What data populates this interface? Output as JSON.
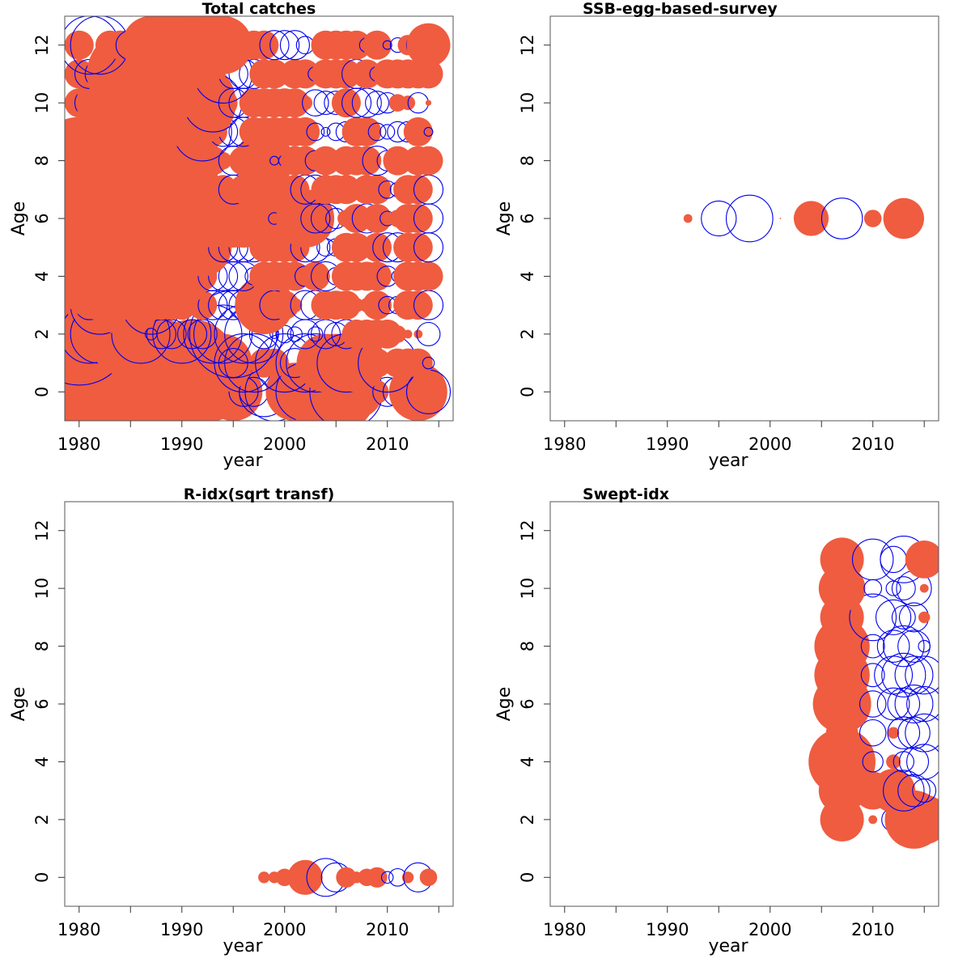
{
  "colors": {
    "positive": "#ef5c40",
    "negative": "#0000ee"
  },
  "chart_data": [
    {
      "type": "scatter",
      "title": "Total catches",
      "xlabel": "year",
      "ylabel": "Age",
      "xlim": [
        1978.6,
        2016.4
      ],
      "ylim": [
        -1,
        13
      ],
      "xticks": [
        1980,
        1990,
        2000,
        2010
      ],
      "yticks": [
        0,
        2,
        4,
        6,
        8,
        10,
        12
      ],
      "x": [
        1980,
        1981,
        1982,
        1983,
        1984,
        1985,
        1986,
        1987,
        1988,
        1989,
        1990,
        1991,
        1992,
        1993,
        1994,
        1995,
        1996,
        1997,
        1998,
        1999,
        2000,
        2001,
        2002,
        2003,
        2004,
        2005,
        2006,
        2007,
        2008,
        2009,
        2010,
        2011,
        2012,
        2013,
        2014
      ],
      "ages": [
        0,
        1,
        2,
        3,
        4,
        5,
        6,
        7,
        8,
        9,
        10,
        11,
        12
      ],
      "residuals": [
        [
          3,
          -2,
          2,
          -3,
          3,
          -3.5,
          2,
          3,
          2,
          -2,
          3,
          2,
          1,
          2,
          0.6,
          2,
          -1,
          -1,
          -1.7,
          -2,
          -1,
          2,
          -2,
          2,
          2.8,
          2.8,
          -2.5,
          1.8,
          0.8,
          0.8,
          -1,
          -1,
          1,
          2,
          -1.5
        ],
        [
          4,
          -1,
          3,
          -2,
          4,
          -2,
          3,
          -1,
          3,
          -1,
          2,
          3,
          2,
          -1,
          2,
          -1,
          -2,
          -2,
          1,
          1,
          -2,
          -1,
          -2,
          -2,
          2,
          2,
          -2,
          2,
          1,
          1,
          -2,
          1,
          1,
          1,
          -0.4
        ],
        [
          -3.5,
          -2,
          -2,
          2,
          2,
          3,
          -2,
          -0.4,
          -1,
          -1,
          -2,
          -1,
          -1,
          -2,
          -2,
          -3,
          -2,
          -2,
          -1,
          -0.3,
          -0.6,
          -0.5,
          -1,
          -0.5,
          -1,
          -0.8,
          -1,
          1,
          1,
          1,
          1,
          0.6,
          0.3,
          0.3,
          -0.8
        ],
        [
          1,
          -1,
          -2,
          -1,
          2,
          2,
          1,
          -2,
          1,
          1,
          1,
          0.7,
          1,
          -1,
          -1,
          -1,
          -1,
          -1,
          2,
          -1,
          1,
          0.5,
          -1,
          -1,
          1,
          1,
          1,
          0.5,
          0.5,
          1,
          -0.6,
          -0.6,
          1,
          1,
          -1
        ],
        [
          -2,
          1,
          3,
          3,
          2,
          3,
          3,
          3,
          2,
          2,
          2,
          1,
          1,
          -1,
          -1,
          -1,
          -1,
          -0.6,
          1,
          1,
          1,
          1,
          -0.7,
          1,
          -1,
          -0.6,
          1,
          1,
          1,
          1,
          -0.7,
          -0.4,
          1,
          1,
          1
        ],
        [
          4,
          4,
          3,
          3,
          3,
          3,
          3,
          3,
          3,
          2,
          2,
          2,
          2,
          1,
          -1,
          -1,
          -1,
          -1,
          1,
          1,
          1,
          1,
          -1,
          -1,
          -0.6,
          -0.6,
          1,
          1,
          0.5,
          1,
          -1,
          -1,
          1,
          1,
          -1
        ],
        [
          4,
          4,
          3,
          3,
          3,
          3,
          3,
          3,
          3,
          3,
          2,
          2,
          2,
          2,
          1,
          2,
          2,
          2,
          2,
          -0.4,
          0.5,
          1,
          2,
          -1,
          -1,
          -0.7,
          0.6,
          1,
          -1,
          1,
          -0.5,
          0.6,
          1,
          1,
          -1
        ],
        [
          4,
          4,
          3,
          3,
          3,
          3,
          3,
          2,
          2,
          2,
          2,
          2,
          1,
          1,
          1,
          -1,
          1,
          1,
          1,
          0.8,
          1,
          1,
          -1,
          -1,
          1,
          1,
          1,
          0.6,
          1,
          1,
          -0.6,
          -0.5,
          1,
          1,
          -1
        ],
        [
          3,
          -1,
          2,
          3,
          3,
          3,
          3,
          2,
          2,
          2,
          2,
          2,
          1,
          1,
          0.6,
          -1,
          1,
          1,
          2,
          -0.3,
          -0.4,
          1,
          1,
          -0.7,
          1,
          0.5,
          1,
          1,
          1,
          -1,
          -0.7,
          1,
          0.5,
          1,
          1
        ],
        [
          1,
          1,
          -1,
          2,
          3,
          3,
          3,
          3,
          2,
          2,
          2,
          2,
          -2,
          1,
          -1,
          -1,
          -1,
          1,
          1,
          1,
          1,
          1,
          1,
          -0.6,
          -0.3,
          -0.6,
          -0.7,
          1,
          1,
          -0.6,
          -0.5,
          -0.7,
          -0.7,
          1,
          -0.3
        ],
        [
          1,
          -1,
          0.5,
          -1,
          3,
          2,
          3,
          0.6,
          -0.4,
          2,
          3,
          3,
          1,
          -2,
          1,
          -1,
          -1,
          1,
          1,
          1,
          1,
          1,
          0.5,
          -0.9,
          -0.8,
          -0.8,
          1,
          -1,
          -1,
          -0.8,
          -0.7,
          0.6,
          0.5,
          -0.7,
          0.2
        ],
        [
          1,
          -1,
          -1,
          -1,
          -1,
          3,
          3,
          3,
          3,
          3,
          3,
          2,
          1,
          0.3,
          -2,
          -1,
          -1,
          -1,
          1,
          1,
          0.6,
          1,
          1,
          -0.5,
          1,
          1,
          1,
          -1,
          1,
          -0.5,
          1,
          1,
          1,
          1,
          1
        ],
        [
          1,
          -2,
          -2,
          1,
          1,
          -1,
          1,
          2,
          2,
          2,
          3,
          3,
          2,
          2,
          2,
          1,
          1,
          1,
          1,
          -1,
          -1,
          -1,
          -0.6,
          0.2,
          1,
          1,
          1,
          1,
          -0.5,
          1,
          -0.3,
          -0.5,
          0.7,
          -0.8,
          1.5
        ]
      ]
    },
    {
      "type": "scatter",
      "title": "SSB-egg-based-survey",
      "xlabel": "year",
      "ylabel": "Age",
      "xlim": [
        1978.6,
        2016.4
      ],
      "ylim": [
        -1,
        13
      ],
      "xticks": [
        1980,
        1990,
        2000,
        2010
      ],
      "yticks": [
        0,
        2,
        4,
        6,
        8,
        10,
        12
      ],
      "x": [
        1992,
        1995,
        1998,
        2001,
        2004,
        2007,
        2010,
        2013
      ],
      "ages": [
        6
      ],
      "residuals": [
        [
          0.3,
          -1.2,
          -1.6,
          0.05,
          1.2,
          -1.4,
          0.6,
          1.4
        ]
      ]
    },
    {
      "type": "scatter",
      "title": "R-idx(sqrt transf)",
      "xlabel": "year",
      "ylabel": "Age",
      "xlim": [
        1978.6,
        2016.4
      ],
      "ylim": [
        -1,
        13
      ],
      "xticks": [
        1980,
        1990,
        2000,
        2010
      ],
      "yticks": [
        0,
        2,
        4,
        6,
        8,
        10,
        12
      ],
      "x": [
        1998,
        1999,
        2000,
        2001,
        2002,
        2003,
        2004,
        2005,
        2006,
        2007,
        2008,
        2009,
        2010,
        2011,
        2012,
        2013,
        2014
      ],
      "ages": [
        0
      ],
      "residuals": [
        [
          0.4,
          0.4,
          0.6,
          0.4,
          1.2,
          0.1,
          -1.3,
          -1,
          0.7,
          0.4,
          0.6,
          0.7,
          -0.4,
          -0.6,
          0.4,
          -1,
          0.6
        ]
      ]
    },
    {
      "type": "scatter",
      "title": "Swept-idx",
      "xlabel": "year",
      "ylabel": "Age",
      "xlim": [
        1978.6,
        2016.4
      ],
      "ylim": [
        -1,
        13
      ],
      "xticks": [
        1980,
        1990,
        2000,
        2010
      ],
      "yticks": [
        0,
        2,
        4,
        6,
        8,
        10,
        12
      ],
      "x": [
        2007,
        2010,
        2012,
        2013,
        2014,
        2015
      ],
      "ages": [
        2,
        3,
        4,
        5,
        6,
        7,
        8,
        9,
        10,
        11
      ],
      "residuals": [
        [
          1.5,
          0.3,
          -0.8,
          1,
          2,
          1.7
        ],
        [
          1.6,
          1.3,
          1.5,
          -1.4,
          -1.1,
          -0.8
        ],
        [
          2.3,
          -0.7,
          0.5,
          -0.7,
          -1,
          -1.2
        ],
        [
          1.1,
          -0.9,
          0.4,
          -1.1,
          -1.1,
          -1.3
        ],
        [
          2,
          -0.9,
          -1.1,
          -1.1,
          -1.3,
          -1.2
        ],
        [
          1.9,
          -0.8,
          -1.3,
          -1.5,
          -1.3,
          -1.3
        ],
        [
          1.9,
          -0.8,
          -1.1,
          -1.4,
          -1.1,
          -0.4
        ],
        [
          1.5,
          -1.6,
          -1.2,
          -0.8,
          -1,
          0.4
        ],
        [
          1.6,
          -0.6,
          -0.5,
          -0.8,
          -1.2,
          0.3
        ],
        [
          1.5,
          -1.4,
          -0.9,
          -1.6,
          -0.3,
          1.3
        ]
      ]
    }
  ]
}
